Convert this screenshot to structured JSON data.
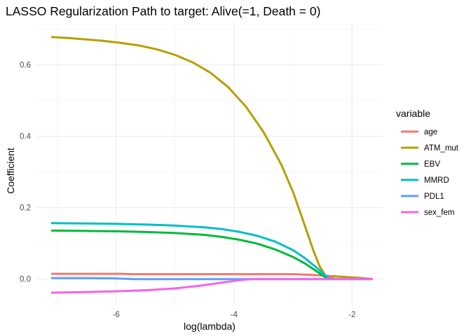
{
  "chart_data": {
    "type": "line",
    "title": "LASSO Regularization Path to target: Alive(=1, Death = 0)",
    "xlabel": "log(lambda)",
    "ylabel": "Coefficient",
    "xlim": [
      -7.35,
      -1.48
    ],
    "ylim": [
      -0.075,
      0.715
    ],
    "x_ticks": [
      -6,
      -4,
      -2
    ],
    "y_ticks": [
      0.0,
      0.2,
      0.4,
      0.6
    ],
    "x_tick_labels": [
      "-6",
      "-4",
      "-2"
    ],
    "y_tick_labels": [
      "0.0",
      "0.2",
      "0.4",
      "0.6"
    ],
    "grid": true,
    "legend": {
      "title": "variable",
      "position": "right"
    },
    "series": [
      {
        "name": "age",
        "color": "#F8766D",
        "x": [
          -7.1,
          -6.5,
          -5.9,
          -5.7,
          -5.0,
          -4.5,
          -4.0,
          -3.5,
          -3.0,
          -2.7,
          -2.4,
          -2.2,
          -2.0,
          -1.8,
          -1.65
        ],
        "y": [
          0.015,
          0.015,
          0.015,
          0.014,
          0.014,
          0.014,
          0.014,
          0.014,
          0.014,
          0.012,
          0.009,
          0.007,
          0.004,
          0.002,
          0.0
        ]
      },
      {
        "name": "ATM_mut",
        "color": "#B79F00",
        "x": [
          -7.1,
          -6.8,
          -6.5,
          -6.2,
          -5.9,
          -5.6,
          -5.3,
          -5.0,
          -4.7,
          -4.4,
          -4.1,
          -3.8,
          -3.5,
          -3.2,
          -3.0,
          -2.8,
          -2.65,
          -2.55,
          -2.45,
          -2.38,
          -2.3,
          -2.1,
          -1.9,
          -1.65
        ],
        "y": [
          0.678,
          0.675,
          0.671,
          0.667,
          0.661,
          0.654,
          0.643,
          0.628,
          0.607,
          0.578,
          0.538,
          0.483,
          0.412,
          0.321,
          0.244,
          0.15,
          0.078,
          0.036,
          0.01,
          0.0,
          0.008,
          0.006,
          0.004,
          0.0
        ]
      },
      {
        "name": "EBV",
        "color": "#00BA38",
        "x": [
          -7.1,
          -6.5,
          -6.0,
          -5.5,
          -5.0,
          -4.5,
          -4.2,
          -3.9,
          -3.6,
          -3.3,
          -3.0,
          -2.8,
          -2.6,
          -2.45,
          -2.38
        ],
        "y": [
          0.136,
          0.135,
          0.134,
          0.132,
          0.129,
          0.124,
          0.118,
          0.11,
          0.099,
          0.083,
          0.062,
          0.044,
          0.022,
          0.005,
          0.0
        ]
      },
      {
        "name": "MMRD",
        "color": "#00BFC4",
        "x": [
          -7.1,
          -6.5,
          -6.0,
          -5.5,
          -5.0,
          -4.5,
          -4.2,
          -3.9,
          -3.6,
          -3.3,
          -3.0,
          -2.8,
          -2.6,
          -2.45,
          -2.36
        ],
        "y": [
          0.157,
          0.156,
          0.155,
          0.153,
          0.15,
          0.145,
          0.14,
          0.132,
          0.121,
          0.105,
          0.081,
          0.059,
          0.032,
          0.01,
          0.0
        ]
      },
      {
        "name": "PDL1",
        "color": "#619CFF",
        "x": [
          -7.1,
          -6.5,
          -6.0,
          -5.7,
          -5.0,
          -4.0,
          -3.0,
          -2.0,
          -1.65
        ],
        "y": [
          0.003,
          0.003,
          0.002,
          0.0,
          0.0,
          0.0,
          0.0,
          0.0,
          0.0
        ]
      },
      {
        "name": "sex_fem",
        "color": "#F564E3",
        "x": [
          -7.1,
          -6.5,
          -6.0,
          -5.5,
          -5.0,
          -4.6,
          -4.3,
          -4.0,
          -3.8,
          -3.7,
          -3.0,
          -2.0,
          -1.65
        ],
        "y": [
          -0.038,
          -0.036,
          -0.034,
          -0.031,
          -0.026,
          -0.019,
          -0.012,
          -0.005,
          -0.001,
          0.0,
          0.0,
          0.0,
          0.0
        ]
      }
    ]
  }
}
